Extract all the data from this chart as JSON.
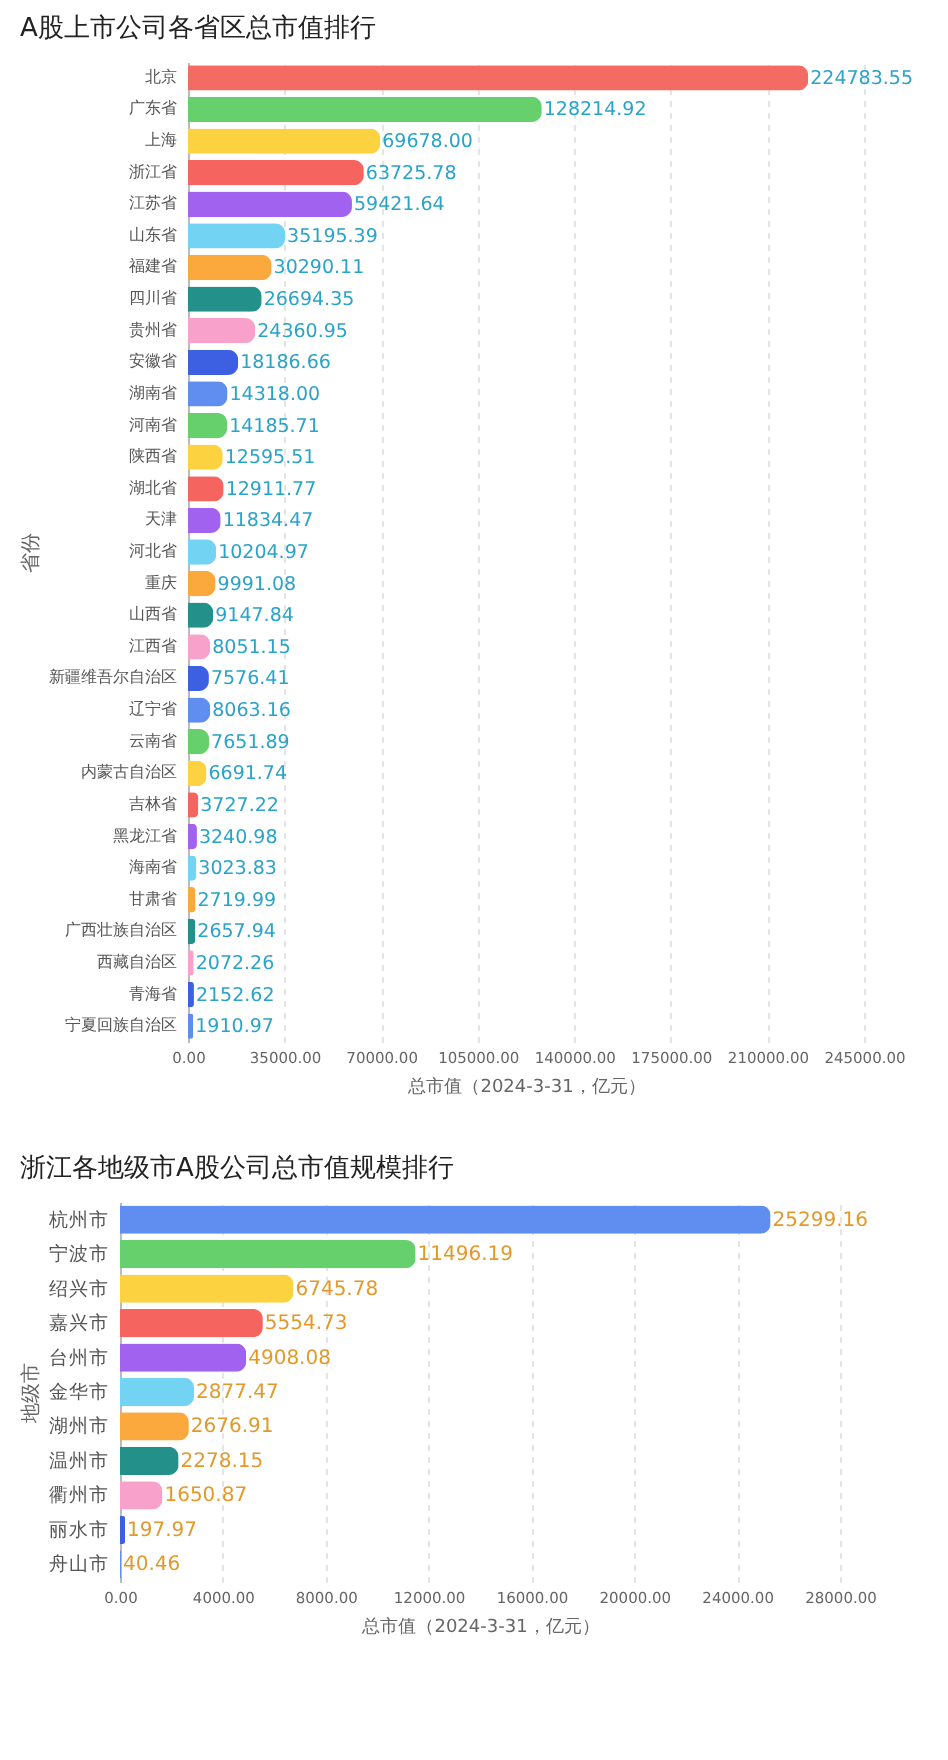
{
  "chart_data": [
    {
      "type": "bar",
      "orientation": "horizontal",
      "title": "A股上市公司各省区总市值排行",
      "xlabel": "总市值（2024-3-31，亿元）",
      "ylabel": "省份",
      "categories": [
        "北京",
        "广东省",
        "上海",
        "浙江省",
        "江苏省",
        "山东省",
        "福建省",
        "四川省",
        "贵州省",
        "安徽省",
        "湖南省",
        "河南省",
        "陕西省",
        "湖北省",
        "天津",
        "河北省",
        "重庆",
        "山西省",
        "江西省",
        "新疆维吾尔自治区",
        "辽宁省",
        "云南省",
        "内蒙古自治区",
        "吉林省",
        "黑龙江省",
        "海南省",
        "甘肃省",
        "广西壮族自治区",
        "西藏自治区",
        "青海省",
        "宁夏回族自治区"
      ],
      "values": [
        224783.55,
        128214.92,
        69678.0,
        63725.78,
        59421.64,
        35195.39,
        30290.11,
        26694.35,
        24360.95,
        18186.66,
        14318.0,
        14185.71,
        12595.51,
        12911.77,
        11834.47,
        10204.97,
        9991.08,
        9147.84,
        8051.15,
        7576.41,
        8063.16,
        7651.89,
        6691.74,
        3727.22,
        3240.98,
        3023.83,
        2719.99,
        2657.94,
        2072.26,
        2152.62,
        1910.97
      ],
      "value_labels": [
        "224783.55",
        "128214.92",
        "69678.00",
        "63725.78",
        "59421.64",
        "35195.39",
        "30290.11",
        "26694.35",
        "24360.95",
        "18186.66",
        "14318.00",
        "14185.71",
        "12595.51",
        "12911.77",
        "11834.47",
        "10204.97",
        "9991.08",
        "9147.84",
        "8051.15",
        "7576.41",
        "8063.16",
        "7651.89",
        "6691.74",
        "3727.22",
        "3240.98",
        "3023.83",
        "2719.99",
        "2657.94",
        "2072.26",
        "2152.62",
        "1910.97"
      ],
      "colors": [
        "#f36b63",
        "#66d06c",
        "#fcd240",
        "#f5645e",
        "#a163ef",
        "#72d3f2",
        "#fba83c",
        "#23908a",
        "#f8a2cb",
        "#3d60e3",
        "#5f8ef0",
        "#66d06c",
        "#fcd240",
        "#f5645e",
        "#a163ef",
        "#72d3f2",
        "#fba83c",
        "#23908a",
        "#f8a2cb",
        "#3d60e3",
        "#5f8ef0",
        "#66d06c",
        "#fcd240",
        "#f5645e",
        "#a163ef",
        "#72d3f2",
        "#fba83c",
        "#23908a",
        "#f8a2cb",
        "#3d60e3",
        "#5f8ef0"
      ],
      "xlim": [
        0,
        245000
      ],
      "xticks": [
        {
          "value": 0,
          "label": "0.00"
        },
        {
          "value": 35000,
          "label": "35000.00"
        },
        {
          "value": 70000,
          "label": "70000.00"
        },
        {
          "value": 105000,
          "label": "105000.00"
        },
        {
          "value": 140000,
          "label": "140000.00"
        },
        {
          "value": 175000,
          "label": "175000.00"
        },
        {
          "value": 210000,
          "label": "210000.00"
        },
        {
          "value": 245000,
          "label": "245000.00"
        }
      ],
      "grid": "x"
    },
    {
      "type": "bar",
      "orientation": "horizontal",
      "title": "浙江各地级市A股公司总市值规模排行",
      "xlabel": "总市值（2024-3-31，亿元）",
      "ylabel": "地级市",
      "categories": [
        "杭州市",
        "宁波市",
        "绍兴市",
        "嘉兴市",
        "台州市",
        "金华市",
        "湖州市",
        "温州市",
        "衢州市",
        "丽水市",
        "舟山市"
      ],
      "values": [
        25299.16,
        11496.19,
        6745.78,
        5554.73,
        4908.08,
        2877.47,
        2676.91,
        2278.15,
        1650.87,
        197.97,
        40.46
      ],
      "value_labels": [
        "25299.16",
        "11496.19",
        "6745.78",
        "5554.73",
        "4908.08",
        "2877.47",
        "2676.91",
        "2278.15",
        "1650.87",
        "197.97",
        "40.46"
      ],
      "colors": [
        "#5f8ef0",
        "#66d06c",
        "#fcd240",
        "#f5645e",
        "#a163ef",
        "#72d3f2",
        "#fba83c",
        "#23908a",
        "#f8a2cb",
        "#3d60e3",
        "#5f8ef0"
      ],
      "xlim": [
        0,
        28000
      ],
      "xticks": [
        {
          "value": 0,
          "label": "0.00"
        },
        {
          "value": 4000,
          "label": "4000.00"
        },
        {
          "value": 8000,
          "label": "8000.00"
        },
        {
          "value": 12000,
          "label": "12000.00"
        },
        {
          "value": 16000,
          "label": "16000.00"
        },
        {
          "value": 20000,
          "label": "20000.00"
        },
        {
          "value": 24000,
          "label": "24000.00"
        },
        {
          "value": 28000,
          "label": "28000.00"
        }
      ],
      "grid": "x"
    }
  ]
}
